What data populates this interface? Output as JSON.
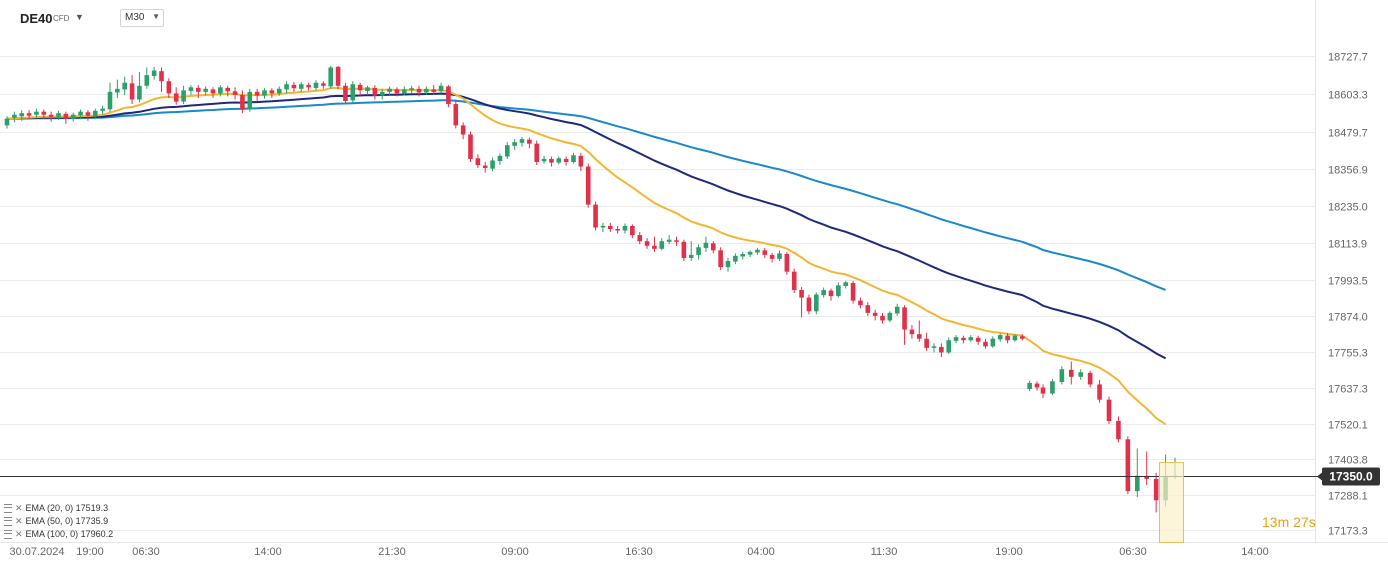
{
  "header": {
    "symbol": "DE40",
    "instrument_type": "CFD",
    "timeframe": "M30"
  },
  "legend": [
    {
      "label": "EMA (20, 0) 17519.3",
      "color": "#f2b632"
    },
    {
      "label": "EMA (50, 0) 17735.9",
      "color": "#1e2a78"
    },
    {
      "label": "EMA (100, 0) 17960.2",
      "color": "#1a88c9"
    }
  ],
  "timer": {
    "minutes": "13",
    "m": "m",
    "seconds": "27",
    "s": "s"
  },
  "chart_data": {
    "type": "candlestick",
    "current_price": "17350.0",
    "y_ticks": [
      "18727.7",
      "18603.3",
      "18479.7",
      "18356.9",
      "18235.0",
      "18113.9",
      "17993.5",
      "17874.0",
      "17755.3",
      "17637.3",
      "17520.1",
      "17403.8",
      "17288.1",
      "17173.3"
    ],
    "x_ticks": [
      "30.07.2024",
      "19:00",
      "06:30",
      "14:00",
      "21:30",
      "09:00",
      "16:30",
      "04:00",
      "11:30",
      "19:00",
      "06:30",
      "14:00"
    ],
    "colors": {
      "up": "#2e9e6a",
      "down": "#e0304a",
      "ema20": "#f2b632",
      "ema50": "#1e2a78",
      "ema100": "#1a88c9",
      "grid": "#ebebeb",
      "price_line": "#333333"
    },
    "candles": [
      [
        18500,
        18522,
        18490,
        18530
      ],
      [
        18525,
        18535,
        18510,
        18545
      ],
      [
        18530,
        18540,
        18515,
        18550
      ],
      [
        18540,
        18532,
        18520,
        18550
      ],
      [
        18535,
        18545,
        18525,
        18555
      ],
      [
        18545,
        18535,
        18520,
        18552
      ],
      [
        18535,
        18528,
        18512,
        18545
      ],
      [
        18528,
        18540,
        18518,
        18548
      ],
      [
        18538,
        18522,
        18505,
        18545
      ],
      [
        18522,
        18535,
        18512,
        18542
      ],
      [
        18533,
        18545,
        18520,
        18552
      ],
      [
        18543,
        18532,
        18515,
        18550
      ],
      [
        18530,
        18548,
        18520,
        18555
      ],
      [
        18548,
        18555,
        18535,
        18565
      ],
      [
        18553,
        18610,
        18545,
        18640
      ],
      [
        18608,
        18620,
        18590,
        18650
      ],
      [
        18618,
        18640,
        18600,
        18660
      ],
      [
        18638,
        18585,
        18570,
        18665
      ],
      [
        18585,
        18630,
        18575,
        18675
      ],
      [
        18630,
        18665,
        18620,
        18690
      ],
      [
        18662,
        18680,
        18650,
        18692
      ],
      [
        18678,
        18645,
        18610,
        18690
      ],
      [
        18645,
        18605,
        18590,
        18655
      ],
      [
        18605,
        18578,
        18568,
        18625
      ],
      [
        18578,
        18615,
        18570,
        18630
      ],
      [
        18613,
        18625,
        18600,
        18632
      ],
      [
        18623,
        18610,
        18590,
        18632
      ],
      [
        18610,
        18620,
        18598,
        18628
      ],
      [
        18618,
        18605,
        18590,
        18625
      ],
      [
        18605,
        18625,
        18595,
        18632
      ],
      [
        18623,
        18612,
        18595,
        18630
      ],
      [
        18612,
        18600,
        18585,
        18625
      ],
      [
        18600,
        18552,
        18540,
        18615
      ],
      [
        18552,
        18610,
        18545,
        18620
      ],
      [
        18610,
        18598,
        18580,
        18620
      ],
      [
        18598,
        18615,
        18588,
        18622
      ],
      [
        18615,
        18605,
        18590,
        18622
      ],
      [
        18605,
        18620,
        18597,
        18628
      ],
      [
        18618,
        18635,
        18605,
        18645
      ],
      [
        18633,
        18622,
        18610,
        18642
      ],
      [
        18620,
        18635,
        18610,
        18642
      ],
      [
        18633,
        18625,
        18615,
        18640
      ],
      [
        18623,
        18640,
        18615,
        18648
      ],
      [
        18638,
        18630,
        18620,
        18645
      ],
      [
        18628,
        18690,
        18620,
        18695
      ],
      [
        18692,
        18630,
        18618,
        18695
      ],
      [
        18630,
        18580,
        18570,
        18640
      ],
      [
        18582,
        18635,
        18575,
        18645
      ],
      [
        18633,
        18615,
        18598,
        18640
      ],
      [
        18613,
        18625,
        18600,
        18630
      ],
      [
        18623,
        18598,
        18585,
        18632
      ],
      [
        18598,
        18610,
        18585,
        18620
      ],
      [
        18610,
        18620,
        18600,
        18628
      ],
      [
        18618,
        18605,
        18595,
        18625
      ],
      [
        18605,
        18618,
        18598,
        18628
      ],
      [
        18616,
        18622,
        18605,
        18630
      ],
      [
        18620,
        18608,
        18595,
        18630
      ],
      [
        18608,
        18620,
        18600,
        18628
      ],
      [
        18618,
        18610,
        18600,
        18632
      ],
      [
        18612,
        18630,
        18605,
        18640
      ],
      [
        18628,
        18570,
        18560,
        18632
      ],
      [
        18570,
        18500,
        18490,
        18585
      ],
      [
        18500,
        18470,
        18455,
        18510
      ],
      [
        18470,
        18390,
        18380,
        18480
      ],
      [
        18392,
        18370,
        18360,
        18405
      ],
      [
        18368,
        18360,
        18345,
        18380
      ],
      [
        18358,
        18385,
        18350,
        18395
      ],
      [
        18383,
        18400,
        18370,
        18408
      ],
      [
        18398,
        18435,
        18390,
        18445
      ],
      [
        18433,
        18445,
        18420,
        18455
      ],
      [
        18443,
        18455,
        18430,
        18462
      ],
      [
        18453,
        18440,
        18425,
        18460
      ],
      [
        18440,
        18380,
        18370,
        18450
      ],
      [
        18382,
        18390,
        18375,
        18400
      ],
      [
        18390,
        18378,
        18365,
        18398
      ],
      [
        18378,
        18392,
        18372,
        18398
      ],
      [
        18390,
        18380,
        18368,
        18398
      ],
      [
        18380,
        18402,
        18375,
        18410
      ],
      [
        18400,
        18365,
        18350,
        18410
      ],
      [
        18365,
        18240,
        18230,
        18375
      ],
      [
        18240,
        18165,
        18155,
        18250
      ],
      [
        18165,
        18170,
        18150,
        18180
      ],
      [
        18170,
        18160,
        18150,
        18180
      ],
      [
        18160,
        18155,
        18145,
        18170
      ],
      [
        18155,
        18170,
        18145,
        18178
      ],
      [
        18170,
        18140,
        18130,
        18175
      ],
      [
        18140,
        18120,
        18110,
        18150
      ],
      [
        18120,
        18105,
        18095,
        18130
      ],
      [
        18105,
        18095,
        18085,
        18135
      ],
      [
        18095,
        18120,
        18090,
        18130
      ],
      [
        18118,
        18125,
        18110,
        18140
      ],
      [
        18123,
        18118,
        18105,
        18135
      ],
      [
        18118,
        18065,
        18055,
        18125
      ],
      [
        18065,
        18075,
        18055,
        18120
      ],
      [
        18075,
        18100,
        18060,
        18110
      ],
      [
        18098,
        18115,
        18085,
        18135
      ],
      [
        18113,
        18090,
        18080,
        18120
      ],
      [
        18090,
        18035,
        18025,
        18100
      ],
      [
        18035,
        18055,
        18020,
        18065
      ],
      [
        18053,
        18072,
        18045,
        18080
      ],
      [
        18070,
        18078,
        18060,
        18085
      ],
      [
        18076,
        18085,
        18068,
        18090
      ],
      [
        18083,
        18092,
        18075,
        18098
      ],
      [
        18090,
        18075,
        18065,
        18098
      ],
      [
        18075,
        18062,
        18050,
        18082
      ],
      [
        18062,
        18080,
        18055,
        18090
      ],
      [
        18078,
        18020,
        18010,
        18085
      ],
      [
        18020,
        17960,
        17950,
        18030
      ],
      [
        17960,
        17935,
        17870,
        17970
      ],
      [
        17935,
        17890,
        17880,
        17945
      ],
      [
        17890,
        17945,
        17880,
        17952
      ],
      [
        17943,
        17960,
        17935,
        17968
      ],
      [
        17958,
        17940,
        17925,
        17965
      ],
      [
        17940,
        17975,
        17935,
        17985
      ],
      [
        17973,
        17985,
        17965,
        17990
      ],
      [
        17983,
        17925,
        17915,
        17990
      ],
      [
        17925,
        17910,
        17900,
        17935
      ],
      [
        17910,
        17885,
        17875,
        17920
      ],
      [
        17885,
        17875,
        17860,
        17895
      ],
      [
        17875,
        17860,
        17850,
        17885
      ],
      [
        17860,
        17885,
        17855,
        17890
      ],
      [
        17883,
        17905,
        17875,
        17915
      ],
      [
        17903,
        17830,
        17780,
        17910
      ],
      [
        17830,
        17815,
        17800,
        17845
      ],
      [
        17815,
        17800,
        17790,
        17860
      ],
      [
        17800,
        17770,
        17760,
        17820
      ],
      [
        17770,
        17775,
        17755,
        17785
      ],
      [
        17773,
        17755,
        17740,
        17785
      ],
      [
        17755,
        17795,
        17750,
        17805
      ],
      [
        17793,
        17805,
        17785,
        17812
      ],
      [
        17803,
        17795,
        17785,
        17810
      ],
      [
        17795,
        17805,
        17790,
        17812
      ],
      [
        17803,
        17790,
        17780,
        17810
      ],
      [
        17790,
        17775,
        17768,
        17800
      ],
      [
        17775,
        17800,
        17770,
        17808
      ],
      [
        17798,
        17812,
        17790,
        17818
      ],
      [
        17810,
        17795,
        17785,
        17818
      ],
      [
        17795,
        17810,
        17790,
        17815
      ],
      [
        17808,
        17800,
        17795,
        17815
      ],
      [
        17635,
        17655,
        17628,
        17662
      ],
      [
        17653,
        17640,
        17630,
        17660
      ],
      [
        17640,
        17620,
        17605,
        17650
      ],
      [
        17620,
        17660,
        17615,
        17668
      ],
      [
        17658,
        17700,
        17650,
        17710
      ],
      [
        17698,
        17675,
        17650,
        17725
      ],
      [
        17675,
        17690,
        17665,
        17700
      ],
      [
        17688,
        17650,
        17640,
        17695
      ],
      [
        17650,
        17600,
        17590,
        17665
      ],
      [
        17600,
        17530,
        17520,
        17610
      ],
      [
        17530,
        17470,
        17460,
        17545
      ],
      [
        17470,
        17300,
        17290,
        17480
      ],
      [
        17300,
        17350,
        17280,
        17440
      ],
      [
        17350,
        17340,
        17320,
        17430
      ],
      [
        17340,
        17270,
        17230,
        17360
      ],
      [
        17270,
        17350,
        17250,
        17420
      ],
      [
        17348,
        17350,
        17340,
        17410
      ]
    ]
  }
}
